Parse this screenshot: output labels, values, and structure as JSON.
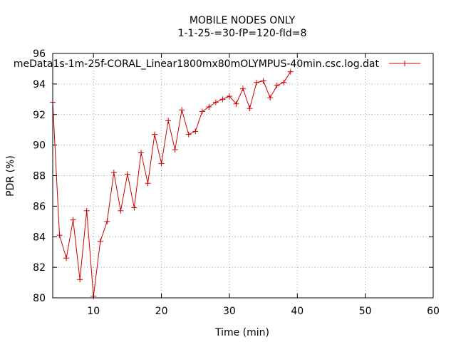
{
  "chart_data": {
    "type": "line",
    "title": "MOBILE NODES ONLY",
    "subtitle": "1-1-25-=30-fP=120-fId=8",
    "xlabel": "Time (min)",
    "ylabel": "PDR (%)",
    "xlim": [
      4,
      60
    ],
    "ylim": [
      80,
      96
    ],
    "xticks": [
      10,
      20,
      30,
      40,
      50,
      60
    ],
    "yticks": [
      80,
      82,
      84,
      86,
      88,
      90,
      92,
      94,
      96
    ],
    "grid": true,
    "legend_position": "top-right",
    "series": [
      {
        "name": "meData1s-1m-25f-CORAL_Linear1800mx80mOLYMPUS-40min.csc.log.dat",
        "color": "#cc0000",
        "marker": "plus",
        "x": [
          4,
          5,
          6,
          7,
          8,
          9,
          10,
          11,
          12,
          13,
          14,
          15,
          16,
          17,
          18,
          19,
          20,
          21,
          22,
          23,
          24,
          25,
          26,
          27,
          28,
          29,
          30,
          31,
          32,
          33,
          34,
          35,
          36,
          37,
          38,
          39
        ],
        "y": [
          92.8,
          84.1,
          82.6,
          85.1,
          81.2,
          85.7,
          80.1,
          83.7,
          85.0,
          88.2,
          85.7,
          88.1,
          85.9,
          89.5,
          87.5,
          90.7,
          88.8,
          91.6,
          89.7,
          92.3,
          90.7,
          90.9,
          92.2,
          92.5,
          92.8,
          93.0,
          93.2,
          92.7,
          93.7,
          92.4,
          94.1,
          94.2,
          93.1,
          93.9,
          94.1,
          94.8
        ]
      }
    ]
  }
}
